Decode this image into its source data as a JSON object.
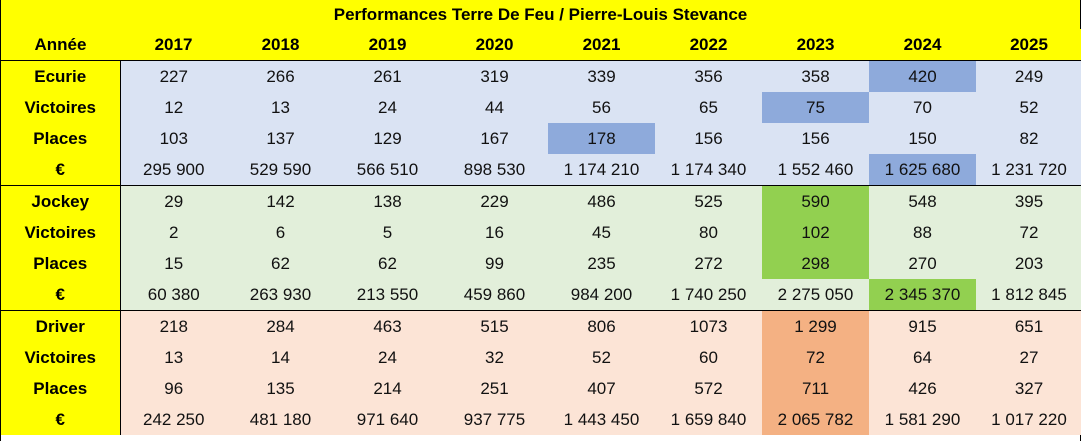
{
  "title": "Performances Terre De Feu / Pierre-Louis Stevance",
  "header": {
    "label": "Année",
    "years": [
      "2017",
      "2018",
      "2019",
      "2020",
      "2021",
      "2022",
      "2023",
      "2024",
      "2025"
    ]
  },
  "groups": [
    {
      "name": "Ecurie",
      "color": "#dae3f3",
      "highlight_color": "#8eaadb",
      "rows": [
        {
          "label": "Ecurie",
          "values": [
            "227",
            "266",
            "261",
            "319",
            "339",
            "356",
            "358",
            "420",
            "249"
          ],
          "highlight": [
            7
          ]
        },
        {
          "label": "Victoires",
          "values": [
            "12",
            "13",
            "24",
            "44",
            "56",
            "65",
            "75",
            "70",
            "52"
          ],
          "highlight": [
            6
          ]
        },
        {
          "label": "Places",
          "values": [
            "103",
            "137",
            "129",
            "167",
            "178",
            "156",
            "156",
            "150",
            "82"
          ],
          "highlight": [
            4
          ]
        },
        {
          "label": "€",
          "values": [
            "295 900",
            "529 590",
            "566 510",
            "898 530",
            "1 174 210",
            "1 174 340",
            "1 552 460",
            "1 625 680",
            "1 231 720"
          ],
          "highlight": [
            7
          ]
        }
      ]
    },
    {
      "name": "Jockey",
      "color": "#e2efda",
      "highlight_color": "#92d050",
      "rows": [
        {
          "label": "Jockey",
          "values": [
            "29",
            "142",
            "138",
            "229",
            "486",
            "525",
            "590",
            "548",
            "395"
          ],
          "highlight": [
            6
          ]
        },
        {
          "label": "Victoires",
          "values": [
            "2",
            "6",
            "5",
            "16",
            "45",
            "80",
            "102",
            "88",
            "72"
          ],
          "highlight": [
            6
          ]
        },
        {
          "label": "Places",
          "values": [
            "15",
            "62",
            "62",
            "99",
            "235",
            "272",
            "298",
            "270",
            "203"
          ],
          "highlight": [
            6
          ]
        },
        {
          "label": "€",
          "values": [
            "60 380",
            "263 930",
            "213 550",
            "459 860",
            "984 200",
            "1 740 250",
            "2 275 050",
            "2 345 370",
            "1 812 845"
          ],
          "highlight": [
            7
          ]
        }
      ]
    },
    {
      "name": "Driver",
      "color": "#fce4d6",
      "highlight_color": "#f4b183",
      "rows": [
        {
          "label": "Driver",
          "values": [
            "218",
            "284",
            "463",
            "515",
            "806",
            "1073",
            "1 299",
            "915",
            "651"
          ],
          "highlight": [
            6
          ]
        },
        {
          "label": "Victoires",
          "values": [
            "13",
            "14",
            "24",
            "32",
            "52",
            "60",
            "72",
            "64",
            "27"
          ],
          "highlight": [
            6
          ]
        },
        {
          "label": "Places",
          "values": [
            "96",
            "135",
            "214",
            "251",
            "407",
            "572",
            "711",
            "426",
            "327"
          ],
          "highlight": [
            6
          ]
        },
        {
          "label": "€",
          "values": [
            "242 250",
            "481 180",
            "971 640",
            "937 775",
            "1 443 450",
            "1 659 840",
            "2 065 782",
            "1 581 290",
            "1 017 220"
          ],
          "highlight": [
            6
          ]
        }
      ]
    }
  ]
}
